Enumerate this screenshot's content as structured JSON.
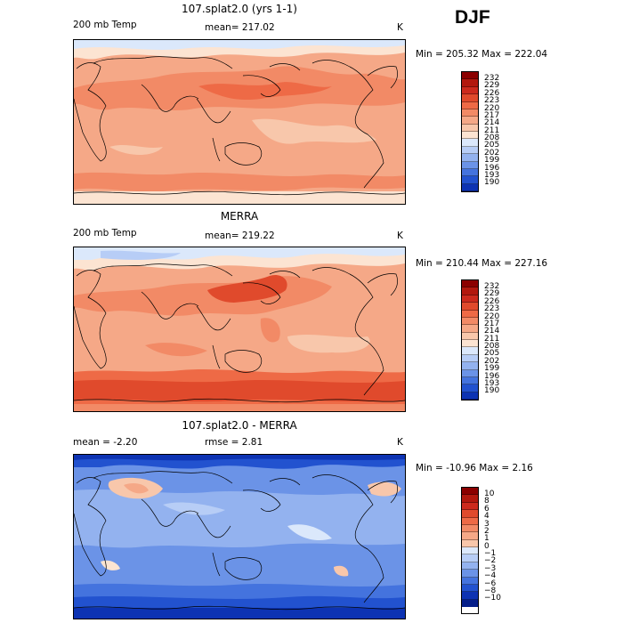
{
  "season": "DJF",
  "colors": {
    "temp": [
      "#8b0000",
      "#b2180e",
      "#cc2a1d",
      "#e04a2c",
      "#ee6a46",
      "#f28a66",
      "#f5a887",
      "#f8c7ab",
      "#fce4d2",
      "#dbe8fb",
      "#b7cdf6",
      "#93b2ef",
      "#6b93e7",
      "#4473de",
      "#2252cf",
      "#0d33b3",
      "#061f8a"
    ],
    "diff": [
      "#8b0000",
      "#b2180e",
      "#cc2a1d",
      "#e04a2c",
      "#ee6a46",
      "#f28a66",
      "#f5a887",
      "#f8c7ab",
      "#dbe8fb",
      "#b7cdf6",
      "#93b2ef",
      "#6b93e7",
      "#4473de",
      "#2252cf",
      "#0d33b3",
      "#061f8a"
    ]
  },
  "panels": [
    {
      "title": "107.splat2.0 (yrs 1-1)",
      "left_label": "200 mb Temp",
      "mean_label": "mean= 217.02",
      "units": "K",
      "minmax": "Min = 205.32  Max = 222.04",
      "legend": [
        "232",
        "229",
        "226",
        "223",
        "220",
        "217",
        "214",
        "211",
        "208",
        "205",
        "202",
        "199",
        "196",
        "193",
        "190"
      ],
      "map_type": "model"
    },
    {
      "title": "MERRA",
      "left_label": "200 mb Temp",
      "mean_label": "mean= 219.22",
      "units": "K",
      "minmax": "Min = 210.44  Max = 227.16",
      "legend": [
        "232",
        "229",
        "226",
        "223",
        "220",
        "217",
        "214",
        "211",
        "208",
        "205",
        "202",
        "199",
        "196",
        "193",
        "190"
      ],
      "map_type": "obs"
    },
    {
      "title": "107.splat2.0 - MERRA",
      "left_label": "mean =   -2.20",
      "mean_label": "rmse =    2.81",
      "units": "K",
      "minmax": "Min = -10.96  Max =    2.16",
      "legend": [
        "10",
        "8",
        "6",
        "4",
        "3",
        "2",
        "1",
        "0",
        "−1",
        "−2",
        "−3",
        "−4",
        "−6",
        "−8",
        "−10"
      ],
      "map_type": "diff"
    }
  ]
}
